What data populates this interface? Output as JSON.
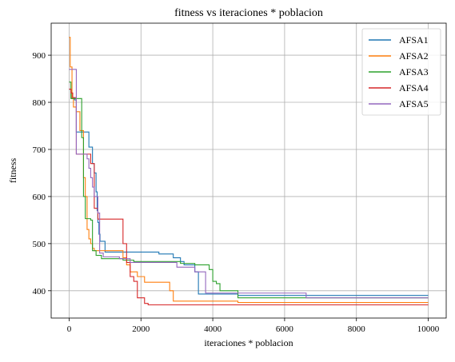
{
  "chart_data": {
    "type": "line",
    "title": "fitness vs iteraciones * poblacion",
    "xlabel": "iteraciones * poblacion",
    "ylabel": "fitness",
    "xlim": [
      -500,
      10500
    ],
    "ylim": [
      342,
      968
    ],
    "xticks": [
      0,
      2000,
      4000,
      6000,
      8000,
      10000
    ],
    "yticks": [
      400,
      500,
      600,
      700,
      800,
      900
    ],
    "grid": true,
    "legend": "top-right",
    "step": true,
    "series": [
      {
        "name": "AFSA1",
        "color": "#1f77b4",
        "x": [
          0,
          50,
          150,
          200,
          500,
          550,
          650,
          700,
          750,
          780,
          800,
          830,
          860,
          1000,
          2400,
          2500,
          2900,
          3100,
          3200,
          3500,
          3600,
          4700,
          10000
        ],
        "y": [
          828,
          810,
          805,
          737,
          737,
          705,
          670,
          650,
          610,
          570,
          545,
          520,
          505,
          482,
          482,
          478,
          470,
          462,
          455,
          440,
          393,
          390,
          390
        ]
      },
      {
        "name": "AFSA2",
        "color": "#ff7f0e",
        "x": [
          0,
          30,
          80,
          120,
          200,
          300,
          400,
          450,
          500,
          550,
          600,
          650,
          700,
          1500,
          1600,
          1700,
          1900,
          2100,
          2800,
          2900,
          3100,
          4700,
          10000
        ],
        "y": [
          938,
          875,
          808,
          790,
          780,
          740,
          640,
          600,
          530,
          510,
          500,
          490,
          485,
          470,
          455,
          440,
          430,
          418,
          400,
          378,
          378,
          375,
          375
        ]
      },
      {
        "name": "AFSA3",
        "color": "#2ca02c",
        "x": [
          0,
          50,
          300,
          350,
          400,
          450,
          600,
          650,
          750,
          900,
          1500,
          1800,
          3100,
          3500,
          3900,
          4000,
          4100,
          4200,
          4700,
          10000
        ],
        "y": [
          843,
          808,
          808,
          725,
          600,
          553,
          550,
          485,
          475,
          468,
          465,
          462,
          458,
          455,
          445,
          420,
          415,
          400,
          385,
          385
        ]
      },
      {
        "name": "AFSA4",
        "color": "#d62728",
        "x": [
          0,
          50,
          100,
          200,
          500,
          600,
          700,
          800,
          900,
          1000,
          1400,
          1500,
          1600,
          1700,
          1800,
          1900,
          2100,
          2200,
          10000
        ],
        "y": [
          828,
          820,
          810,
          690,
          690,
          670,
          575,
          552,
          552,
          552,
          552,
          500,
          460,
          430,
          420,
          385,
          373,
          370,
          370
        ]
      },
      {
        "name": "AFSA5",
        "color": "#9467bd",
        "x": [
          0,
          100,
          200,
          300,
          400,
          500,
          550,
          600,
          650,
          700,
          800,
          850,
          950,
          1400,
          1700,
          2300,
          3000,
          3500,
          3800,
          4700,
          6600,
          10000
        ],
        "y": [
          870,
          870,
          690,
          690,
          690,
          680,
          660,
          640,
          620,
          600,
          565,
          480,
          472,
          468,
          460,
          460,
          450,
          440,
          395,
          395,
          385,
          385
        ]
      }
    ]
  }
}
